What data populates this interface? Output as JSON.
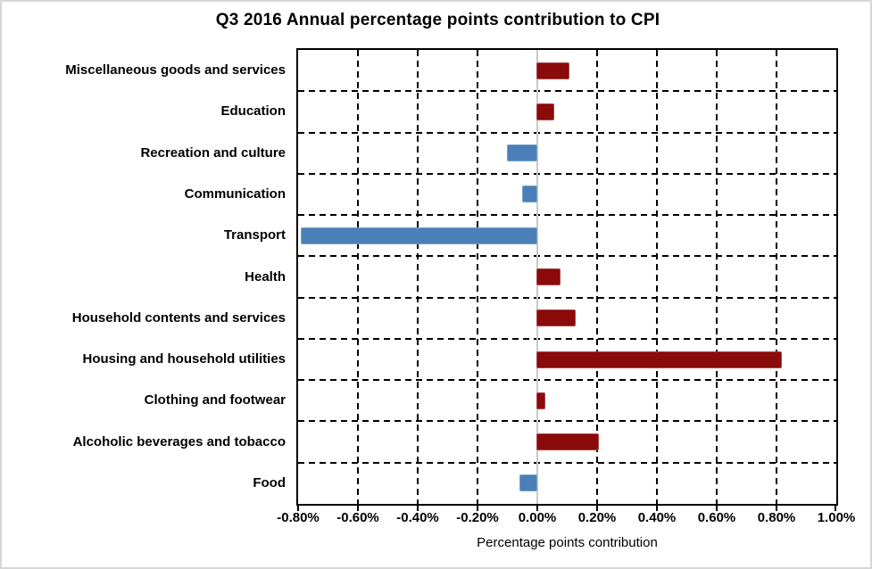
{
  "title": "Q3 2016 Annual percentage points contribution to CPI",
  "chart_data": {
    "type": "bar",
    "orientation": "horizontal",
    "title": "Q3 2016 Annual percentage points contribution to CPI",
    "xlabel": "Percentage points contribution",
    "ylabel": "",
    "categories": [
      "Miscellaneous goods and services",
      "Education",
      "Recreation and culture",
      "Communication",
      "Transport",
      "Health",
      "Household contents and services",
      "Housing and household utilities",
      "Clothing and footwear",
      "Alcoholic beverages and tobacco",
      "Food"
    ],
    "values": [
      0.11,
      0.06,
      -0.1,
      -0.05,
      -0.79,
      0.08,
      0.13,
      0.82,
      0.03,
      0.21,
      -0.06
    ],
    "xlim": [
      -0.8,
      1.0
    ],
    "xtick_step": 0.2,
    "xtick_labels": [
      "-0.80%",
      "-0.60%",
      "-0.40%",
      "-0.20%",
      "0.00%",
      "0.20%",
      "0.40%",
      "0.60%",
      "0.80%",
      "1.00%"
    ],
    "grid": "dashed-both-axes",
    "legend": "none",
    "colors": {
      "positive_bar": "#8B0A0A",
      "negative_bar": "#4A80B7",
      "zero_line": "#C9C9C9",
      "plot_border": "#000000",
      "text": "#000000"
    }
  }
}
